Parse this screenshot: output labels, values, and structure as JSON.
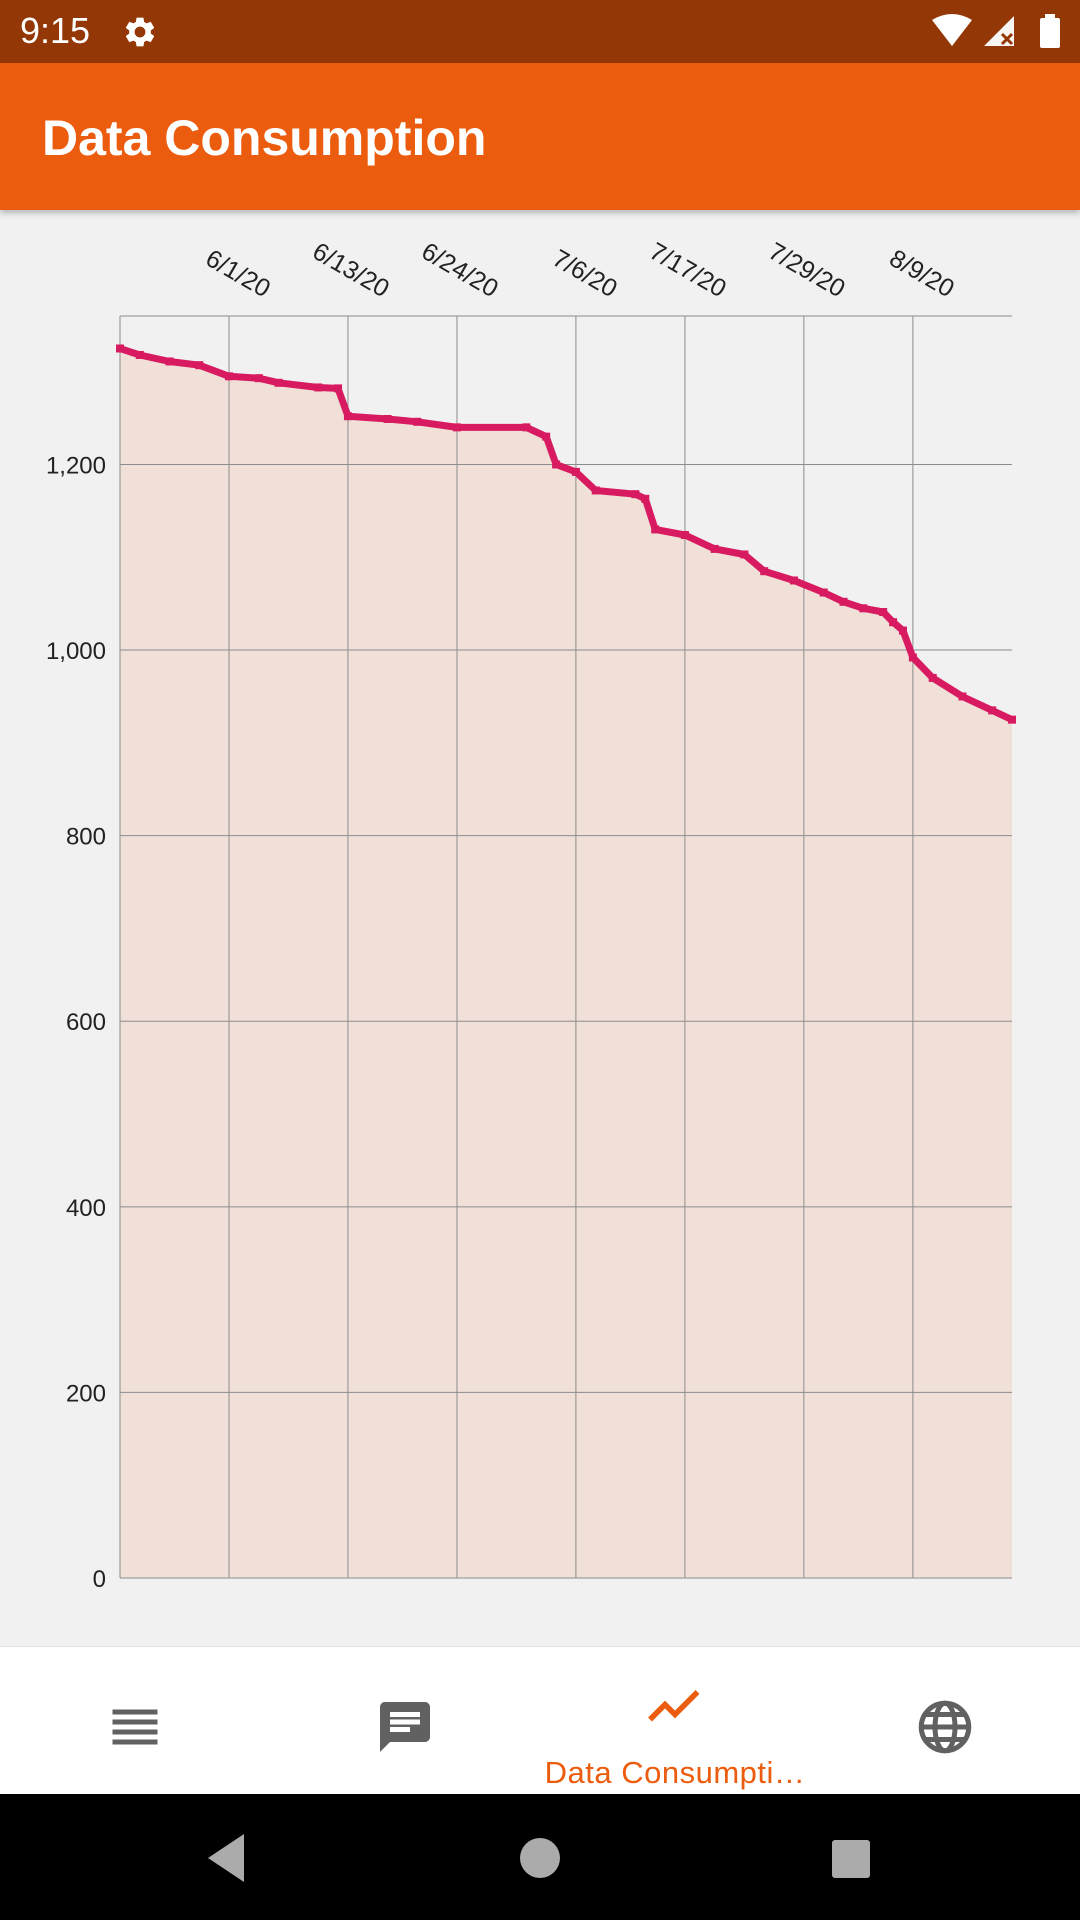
{
  "status_bar": {
    "time": "9:15",
    "icons": [
      "settings-icon",
      "wifi-icon",
      "signal-icon",
      "battery-icon"
    ]
  },
  "app_bar": {
    "title": "Data Consumption"
  },
  "bottom_nav": {
    "items": [
      {
        "icon": "list-icon",
        "label": ""
      },
      {
        "icon": "chat-message-icon",
        "label": ""
      },
      {
        "icon": "trending-line-icon",
        "label": "Data Consumpti…",
        "active": true
      },
      {
        "icon": "globe-icon",
        "label": ""
      }
    ]
  },
  "system_nav": {
    "icons": [
      "back-icon",
      "home-icon",
      "recents-icon"
    ]
  },
  "colors": {
    "status_bar": "#923705",
    "app_bar": "#ec5c0e",
    "accent": "#ec5c0e",
    "series_line": "#d81b60",
    "series_fill": "#f0e0d8"
  },
  "chart_data": {
    "type": "area",
    "title": "",
    "xlabel": "",
    "ylabel": "",
    "x_ticks": [
      "6/1/20",
      "6/13/20",
      "6/24/20",
      "7/6/20",
      "7/17/20",
      "7/29/20",
      "8/9/20"
    ],
    "x_range": [
      "2020-05-21",
      "2020-08-19"
    ],
    "y_ticks": [
      "0",
      "200",
      "400",
      "600",
      "800",
      "1,000",
      "1,200"
    ],
    "ylim": [
      0,
      1360
    ],
    "grid": true,
    "series": [
      {
        "x": [
          "2020-05-21",
          "2020-05-23",
          "2020-05-26",
          "2020-05-29",
          "2020-06-01",
          "2020-06-04",
          "2020-06-06",
          "2020-06-10",
          "2020-06-12",
          "2020-06-13",
          "2020-06-17",
          "2020-06-20",
          "2020-06-24",
          "2020-07-01",
          "2020-07-03",
          "2020-07-04",
          "2020-07-06",
          "2020-07-08",
          "2020-07-12",
          "2020-07-13",
          "2020-07-14",
          "2020-07-17",
          "2020-07-20",
          "2020-07-23",
          "2020-07-25",
          "2020-07-28",
          "2020-07-31",
          "2020-08-02",
          "2020-08-04",
          "2020-08-06",
          "2020-08-07",
          "2020-08-08",
          "2020-08-09",
          "2020-08-11",
          "2020-08-14",
          "2020-08-17",
          "2020-08-19"
        ],
        "y": [
          1325,
          1318,
          1311,
          1307,
          1295,
          1293,
          1288,
          1283,
          1282,
          1252,
          1249,
          1246,
          1240,
          1240,
          1230,
          1200,
          1192,
          1172,
          1168,
          1163,
          1130,
          1124,
          1109,
          1103,
          1085,
          1075,
          1062,
          1052,
          1045,
          1041,
          1030,
          1021,
          992,
          970,
          950,
          935,
          925
        ]
      }
    ]
  }
}
